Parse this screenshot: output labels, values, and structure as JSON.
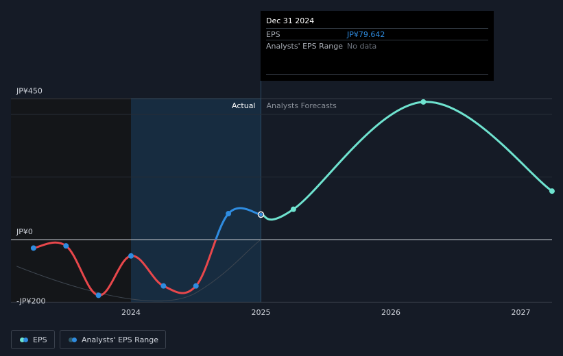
{
  "tooltip": {
    "date": "Dec 31 2024",
    "eps_label": "EPS",
    "eps_value": "JP¥79.642",
    "range_label": "Analysts' EPS Range",
    "range_value": "No data"
  },
  "legend": {
    "eps_label": "EPS",
    "range_label": "Analysts' EPS Range"
  },
  "colors": {
    "background": "#151b26",
    "actual_negative": "#e8474b",
    "actual_positive": "#2f8ce0",
    "forecast": "#6fe3cf",
    "range": "#2e5a6a",
    "tooltip_eps": "#2f8ce0",
    "tooltip_nodata": "#6b717b"
  },
  "chart_data": {
    "type": "line",
    "ylabel_ticks": [
      "JP¥450",
      "JP¥0",
      "-JP¥200"
    ],
    "y_ticks": [
      450,
      0,
      -200
    ],
    "xlabel_ticks": [
      "2024",
      "2025",
      "2026",
      "2027"
    ],
    "x_ticks": [
      2024,
      2025,
      2026,
      2027
    ],
    "ylim": [
      -200,
      450
    ],
    "xlim": [
      2023.0,
      2027.24
    ],
    "section_labels": {
      "actual": "Actual",
      "forecast": "Analysts Forecasts"
    },
    "divider_x": 2025,
    "series": [
      {
        "name": "EPS",
        "points": [
          {
            "x": 2023.25,
            "y": -27
          },
          {
            "x": 2023.5,
            "y": -20
          },
          {
            "x": 2023.75,
            "y": -178
          },
          {
            "x": 2024.0,
            "y": -52
          },
          {
            "x": 2024.25,
            "y": -148
          },
          {
            "x": 2024.5,
            "y": -148
          },
          {
            "x": 2024.75,
            "y": 83
          },
          {
            "x": 2025.0,
            "y": 80
          }
        ]
      },
      {
        "name": "EPS (forecast)",
        "points": [
          {
            "x": 2025.0,
            "y": 80
          },
          {
            "x": 2025.25,
            "y": 97
          },
          {
            "x": 2026.25,
            "y": 440
          },
          {
            "x": 2027.24,
            "y": 155
          }
        ]
      }
    ],
    "grid": true,
    "legend_position": "bottom-left"
  }
}
